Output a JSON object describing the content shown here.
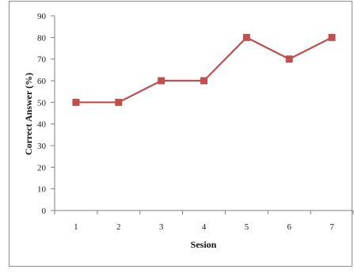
{
  "chart_data": {
    "type": "line",
    "x": [
      1,
      2,
      3,
      4,
      5,
      6,
      7
    ],
    "categories": [
      "1",
      "2",
      "3",
      "4",
      "5",
      "6",
      "7"
    ],
    "series": [
      {
        "values": [
          50,
          50,
          60,
          60,
          80,
          70,
          80
        ]
      }
    ],
    "xlabel": "Sesion",
    "ylabel": "Correct Answer (%)",
    "ylim": [
      0,
      90
    ],
    "yticks": [
      "0",
      "10",
      "20",
      "30",
      "40",
      "50",
      "60",
      "70",
      "80",
      "90"
    ],
    "grid": false,
    "legend": "none",
    "line_color": "#c0504d",
    "marker_color": "#c0504d",
    "marker": "square"
  }
}
